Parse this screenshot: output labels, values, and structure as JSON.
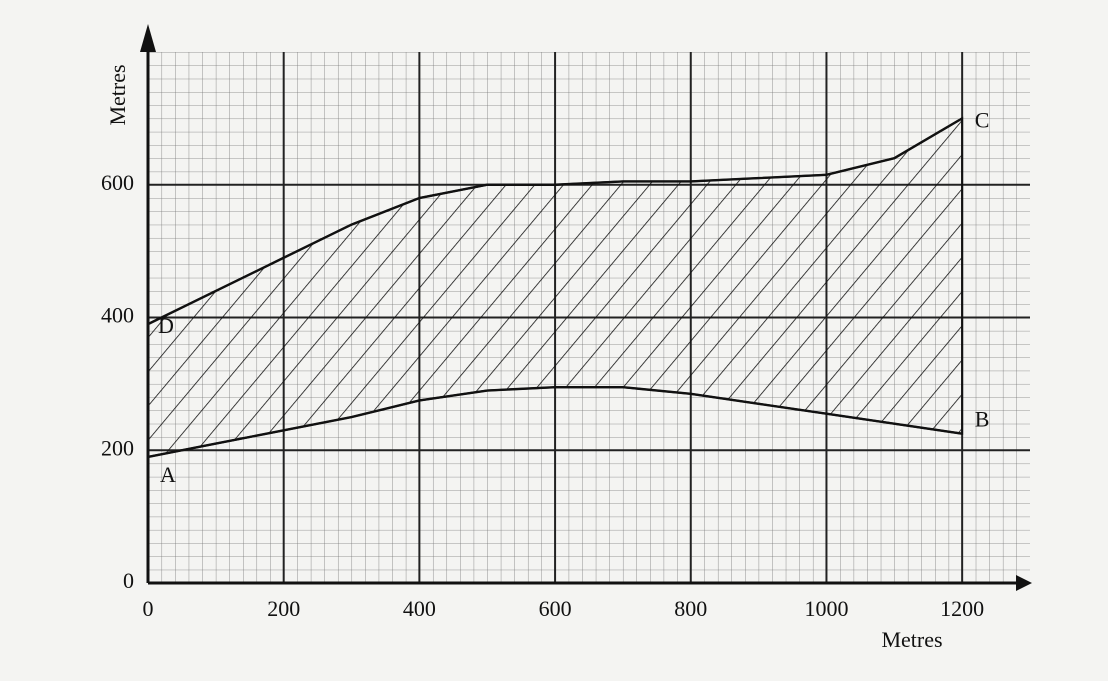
{
  "chart_data": {
    "type": "area-between",
    "x_label": "Metres",
    "y_label": "Metres",
    "x": [
      0,
      100,
      200,
      300,
      400,
      500,
      600,
      700,
      800,
      900,
      1000,
      1100,
      1200
    ],
    "series": [
      {
        "values": [
          390,
          440,
          490,
          540,
          580,
          600,
          600,
          605,
          605,
          610,
          615,
          640,
          700
        ],
        "color": "#111111"
      },
      {
        "values": [
          190,
          210,
          230,
          250,
          275,
          290,
          295,
          295,
          285,
          270,
          255,
          240,
          225
        ],
        "color": "#111111"
      }
    ],
    "point_labels": [
      {
        "label": "D",
        "x": 0,
        "y": 390
      },
      {
        "label": "A",
        "x": 0,
        "y": 190
      },
      {
        "label": "C",
        "x": 1200,
        "y": 700
      },
      {
        "label": "B",
        "x": 1200,
        "y": 225
      }
    ],
    "xlim": [
      0,
      1300
    ],
    "ylim": [
      0,
      800
    ],
    "xticks": [
      0,
      200,
      400,
      600,
      800,
      1000,
      1200
    ],
    "yticks": [
      0,
      200,
      400,
      600
    ],
    "grid": true
  }
}
